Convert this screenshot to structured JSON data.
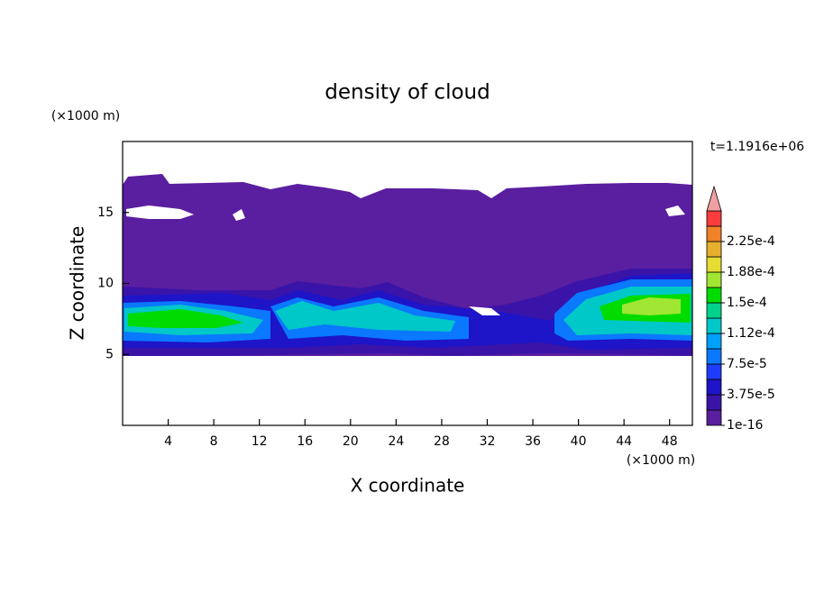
{
  "chart_data": {
    "type": "contour",
    "title": "density of cloud",
    "x_label": "X coordinate",
    "y_label": "Z coordinate",
    "x_unit": "(×1000 m)",
    "y_unit": "(×1000 m)",
    "time_label": "t=1.1916e+06",
    "xlim": [
      0,
      50
    ],
    "ylim": [
      0,
      20
    ],
    "xticks": [
      4,
      8,
      12,
      16,
      20,
      24,
      28,
      32,
      36,
      40,
      44,
      48
    ],
    "yticks": [
      5,
      10,
      15
    ],
    "colorbar": {
      "levels": [
        {
          "value": 1e-16,
          "label": "1e-16"
        },
        {
          "value": 3.75e-05,
          "label": "3.75e-5"
        },
        {
          "value": 7.5e-05,
          "label": "7.5e-5"
        },
        {
          "value": 0.000112,
          "label": "1.12e-4"
        },
        {
          "value": 0.00015,
          "label": "1.5e-4"
        },
        {
          "value": 0.000188,
          "label": "1.88e-4"
        },
        {
          "value": 0.000225,
          "label": "2.25e-4"
        }
      ],
      "colors": [
        "#5a1ea0",
        "#3a14a8",
        "#1e14c8",
        "#1e3cff",
        "#0a78ff",
        "#00a0ff",
        "#00c8c8",
        "#00d28c",
        "#00dc00",
        "#a0e632",
        "#e6dc32",
        "#e6af2d",
        "#f08228",
        "#fa3c3c",
        "#f0a0a0"
      ]
    }
  }
}
